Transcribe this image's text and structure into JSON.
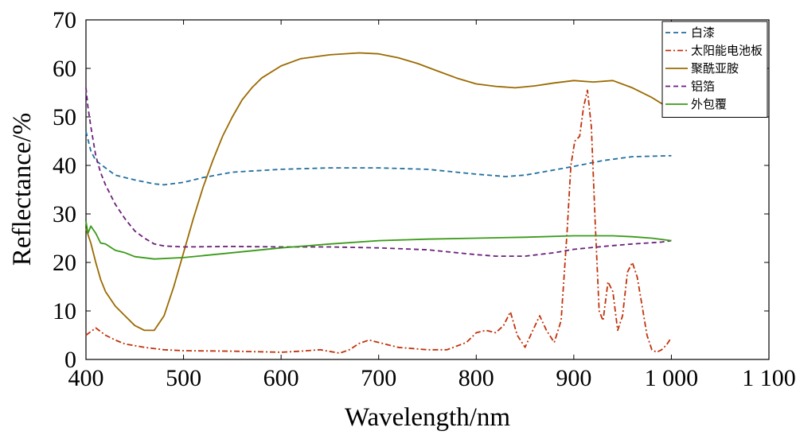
{
  "chart_data": {
    "type": "line",
    "xlabel": "Wavelength/nm",
    "ylabel": "Reflectance/%",
    "xlim": [
      400,
      1100
    ],
    "ylim": [
      0,
      70
    ],
    "xticks": [
      400,
      500,
      600,
      700,
      800,
      900,
      1000,
      1100
    ],
    "xtick_labels": [
      "400",
      "500",
      "600",
      "700",
      "800",
      "900",
      "1 000",
      "1 100"
    ],
    "yticks": [
      0,
      10,
      20,
      30,
      40,
      50,
      60,
      70
    ],
    "ytick_labels": [
      "0",
      "10",
      "20",
      "30",
      "40",
      "50",
      "60",
      "70"
    ],
    "grid": false,
    "legend_position": "top-right",
    "series": [
      {
        "name": "白漆",
        "color": "#1f6f9f",
        "dash": "dashed",
        "points": [
          [
            400,
            47
          ],
          [
            405,
            43
          ],
          [
            410,
            41
          ],
          [
            420,
            39.5
          ],
          [
            430,
            38
          ],
          [
            450,
            37
          ],
          [
            470,
            36.2
          ],
          [
            480,
            36
          ],
          [
            500,
            36.5
          ],
          [
            520,
            37.5
          ],
          [
            550,
            38.6
          ],
          [
            600,
            39.2
          ],
          [
            650,
            39.5
          ],
          [
            700,
            39.5
          ],
          [
            750,
            39.2
          ],
          [
            800,
            38.2
          ],
          [
            830,
            37.7
          ],
          [
            850,
            38
          ],
          [
            870,
            38.7
          ],
          [
            900,
            39.8
          ],
          [
            930,
            41
          ],
          [
            960,
            41.8
          ],
          [
            1000,
            42
          ]
        ]
      },
      {
        "name": "太阳能电池板",
        "color": "#c0320a",
        "dash": "dashdot",
        "points": [
          [
            400,
            5
          ],
          [
            410,
            6.5
          ],
          [
            420,
            5
          ],
          [
            430,
            4
          ],
          [
            440,
            3.2
          ],
          [
            460,
            2.5
          ],
          [
            480,
            2
          ],
          [
            500,
            1.8
          ],
          [
            550,
            1.7
          ],
          [
            600,
            1.5
          ],
          [
            620,
            1.7
          ],
          [
            640,
            2
          ],
          [
            660,
            1.3
          ],
          [
            670,
            2
          ],
          [
            680,
            3.3
          ],
          [
            690,
            4
          ],
          [
            700,
            3.5
          ],
          [
            720,
            2.5
          ],
          [
            750,
            2
          ],
          [
            770,
            2
          ],
          [
            790,
            3.5
          ],
          [
            800,
            5.5
          ],
          [
            810,
            6
          ],
          [
            820,
            5.5
          ],
          [
            828,
            7
          ],
          [
            835,
            9.8
          ],
          [
            842,
            5
          ],
          [
            850,
            2.5
          ],
          [
            858,
            6
          ],
          [
            865,
            9
          ],
          [
            872,
            6
          ],
          [
            880,
            3.5
          ],
          [
            887,
            8
          ],
          [
            893,
            26
          ],
          [
            897,
            40
          ],
          [
            901,
            45
          ],
          [
            906,
            46
          ],
          [
            910,
            52
          ],
          [
            914,
            55.5
          ],
          [
            918,
            48
          ],
          [
            922,
            28
          ],
          [
            926,
            10
          ],
          [
            930,
            8
          ],
          [
            935,
            16
          ],
          [
            940,
            14
          ],
          [
            945,
            6
          ],
          [
            950,
            9
          ],
          [
            955,
            18
          ],
          [
            960,
            20
          ],
          [
            965,
            17
          ],
          [
            970,
            11
          ],
          [
            975,
            5
          ],
          [
            980,
            2
          ],
          [
            985,
            1.5
          ],
          [
            990,
            2
          ],
          [
            995,
            3
          ],
          [
            1000,
            4.5
          ]
        ]
      },
      {
        "name": "聚酰亚胺",
        "color": "#9b6a00",
        "dash": "solid",
        "points": [
          [
            400,
            27
          ],
          [
            405,
            24
          ],
          [
            410,
            20
          ],
          [
            415,
            16.5
          ],
          [
            420,
            14
          ],
          [
            430,
            11
          ],
          [
            440,
            9
          ],
          [
            450,
            7
          ],
          [
            460,
            6
          ],
          [
            470,
            6
          ],
          [
            480,
            9
          ],
          [
            490,
            15
          ],
          [
            500,
            22
          ],
          [
            510,
            29
          ],
          [
            520,
            35.5
          ],
          [
            530,
            41
          ],
          [
            540,
            46
          ],
          [
            550,
            50
          ],
          [
            560,
            53.5
          ],
          [
            570,
            56
          ],
          [
            580,
            58
          ],
          [
            600,
            60.5
          ],
          [
            620,
            62
          ],
          [
            650,
            62.8
          ],
          [
            680,
            63.2
          ],
          [
            700,
            63
          ],
          [
            720,
            62.2
          ],
          [
            740,
            61
          ],
          [
            760,
            59.5
          ],
          [
            780,
            58
          ],
          [
            800,
            56.8
          ],
          [
            820,
            56.3
          ],
          [
            840,
            56
          ],
          [
            860,
            56.4
          ],
          [
            880,
            57
          ],
          [
            900,
            57.5
          ],
          [
            920,
            57.2
          ],
          [
            940,
            57.5
          ],
          [
            960,
            56
          ],
          [
            980,
            54
          ],
          [
            1000,
            51.5
          ]
        ]
      },
      {
        "name": "铝箔",
        "color": "#6b1f7a",
        "dash": "dashed",
        "points": [
          [
            400,
            56
          ],
          [
            402,
            52
          ],
          [
            405,
            48
          ],
          [
            410,
            42
          ],
          [
            415,
            38.5
          ],
          [
            420,
            36
          ],
          [
            430,
            32
          ],
          [
            440,
            29
          ],
          [
            450,
            26.5
          ],
          [
            460,
            25
          ],
          [
            470,
            23.8
          ],
          [
            480,
            23.4
          ],
          [
            500,
            23.2
          ],
          [
            550,
            23.3
          ],
          [
            600,
            23.2
          ],
          [
            650,
            23.2
          ],
          [
            700,
            23
          ],
          [
            750,
            22.6
          ],
          [
            780,
            22
          ],
          [
            800,
            21.6
          ],
          [
            820,
            21.3
          ],
          [
            850,
            21.3
          ],
          [
            880,
            22
          ],
          [
            900,
            22.7
          ],
          [
            930,
            23.3
          ],
          [
            960,
            23.8
          ],
          [
            990,
            24.2
          ],
          [
            1000,
            24.5
          ]
        ]
      },
      {
        "name": "外包覆",
        "color": "#3a9a1a",
        "dash": "solid",
        "points": [
          [
            400,
            28.5
          ],
          [
            402,
            26
          ],
          [
            405,
            27.5
          ],
          [
            410,
            26
          ],
          [
            415,
            24
          ],
          [
            420,
            23.8
          ],
          [
            430,
            22.5
          ],
          [
            440,
            22
          ],
          [
            450,
            21.2
          ],
          [
            470,
            20.7
          ],
          [
            500,
            21
          ],
          [
            550,
            22
          ],
          [
            600,
            23
          ],
          [
            650,
            23.8
          ],
          [
            700,
            24.5
          ],
          [
            750,
            24.8
          ],
          [
            800,
            25
          ],
          [
            850,
            25.2
          ],
          [
            900,
            25.5
          ],
          [
            940,
            25.5
          ],
          [
            960,
            25.3
          ],
          [
            980,
            25
          ],
          [
            1000,
            24.5
          ]
        ]
      }
    ]
  }
}
